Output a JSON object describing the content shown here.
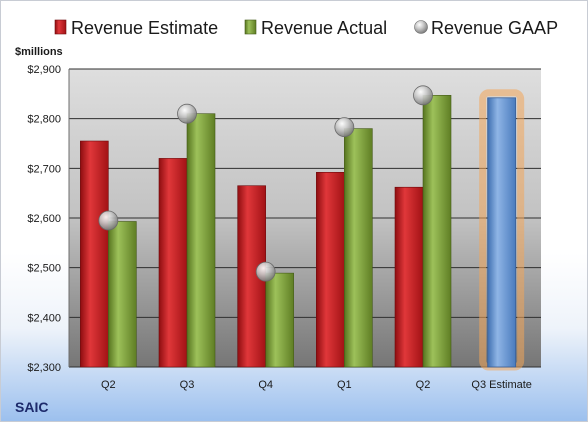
{
  "company": "SAIC",
  "colors": {
    "estimate": "#c8181c",
    "actual": "#7fa13a",
    "gaap": "#a9a9a9",
    "estimate_future": "#6c9ad6",
    "highlight": "#f2a65a"
  },
  "chart_data": {
    "type": "bar",
    "title": "",
    "xlabel": "",
    "ylabel": "$millions",
    "ylim": [
      2300,
      2900
    ],
    "yticks": [
      "$2,300",
      "$2,400",
      "$2,500",
      "$2,600",
      "$2,700",
      "$2,800",
      "$2,900"
    ],
    "ytick_values": [
      2300,
      2400,
      2500,
      2600,
      2700,
      2800,
      2900
    ],
    "grid": true,
    "legend_position": "top",
    "categories": [
      "Q2",
      "Q3",
      "Q4",
      "Q1",
      "Q2",
      "Q3 Estimate"
    ],
    "series": [
      {
        "name": "Revenue Estimate",
        "kind": "bar",
        "values": [
          2755,
          2720,
          2665,
          2692,
          2662,
          2842
        ]
      },
      {
        "name": "Revenue Actual",
        "kind": "bar",
        "values": [
          2593,
          2810,
          2489,
          2780,
          2847,
          null
        ]
      },
      {
        "name": "Revenue GAAP",
        "kind": "marker",
        "values": [
          2595,
          2810,
          2492,
          2783,
          2847,
          null
        ]
      }
    ]
  }
}
